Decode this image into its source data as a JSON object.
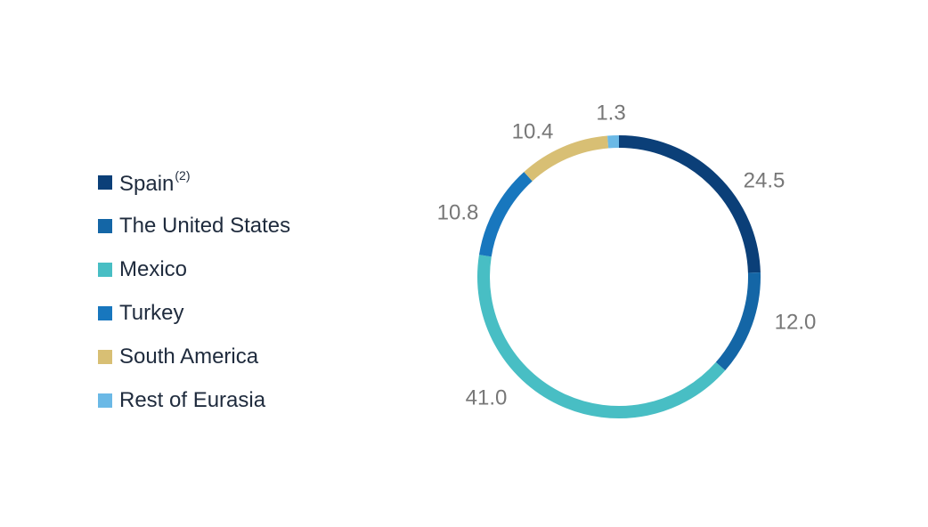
{
  "chart_data": {
    "type": "donut",
    "title": "",
    "legend_position": "left",
    "start_angle_deg": 0,
    "direction": "clockwise",
    "series": [
      {
        "name": "Spain",
        "superscript": "(2)",
        "value": 24.5,
        "label": "24.5",
        "color": "#0b3f78"
      },
      {
        "name": "The United States",
        "superscript": "",
        "value": 12.0,
        "label": "12.0",
        "color": "#1466a6"
      },
      {
        "name": "Mexico",
        "superscript": "",
        "value": 41.0,
        "label": "41.0",
        "color": "#48bec4"
      },
      {
        "name": "Turkey",
        "superscript": "",
        "value": 10.8,
        "label": "10.8",
        "color": "#1877be"
      },
      {
        "name": "South America",
        "superscript": "",
        "value": 10.4,
        "label": "10.4",
        "color": "#d8bf74"
      },
      {
        "name": "Rest of Eurasia",
        "superscript": "",
        "value": 1.3,
        "label": "1.3",
        "color": "#6bb9e6"
      }
    ]
  }
}
